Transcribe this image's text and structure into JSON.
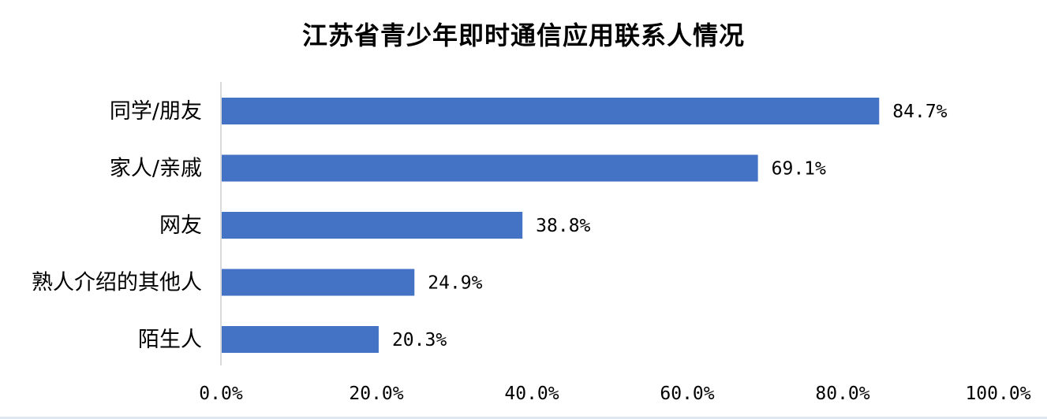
{
  "chart_data": {
    "type": "bar",
    "orientation": "horizontal",
    "title": "江苏省青少年即时通信应用联系人情况",
    "categories": [
      "同学/朋友",
      "家人/亲戚",
      "网友",
      "熟人介绍的其他人",
      "陌生人"
    ],
    "values": [
      84.7,
      69.1,
      38.8,
      24.9,
      20.3
    ],
    "data_labels": [
      "84.7%",
      "69.1%",
      "38.8%",
      "24.9%",
      "20.3%"
    ],
    "xlim": [
      0,
      100
    ],
    "x_ticks": [
      0,
      20,
      40,
      60,
      80,
      100
    ],
    "x_tick_labels": [
      "0.0%",
      "20.0%",
      "40.0%",
      "60.0%",
      "80.0%",
      "100.0%"
    ],
    "grid": false,
    "legend": "none",
    "bar_color": "#4472C4",
    "axis_color": "#d9d9d9"
  }
}
